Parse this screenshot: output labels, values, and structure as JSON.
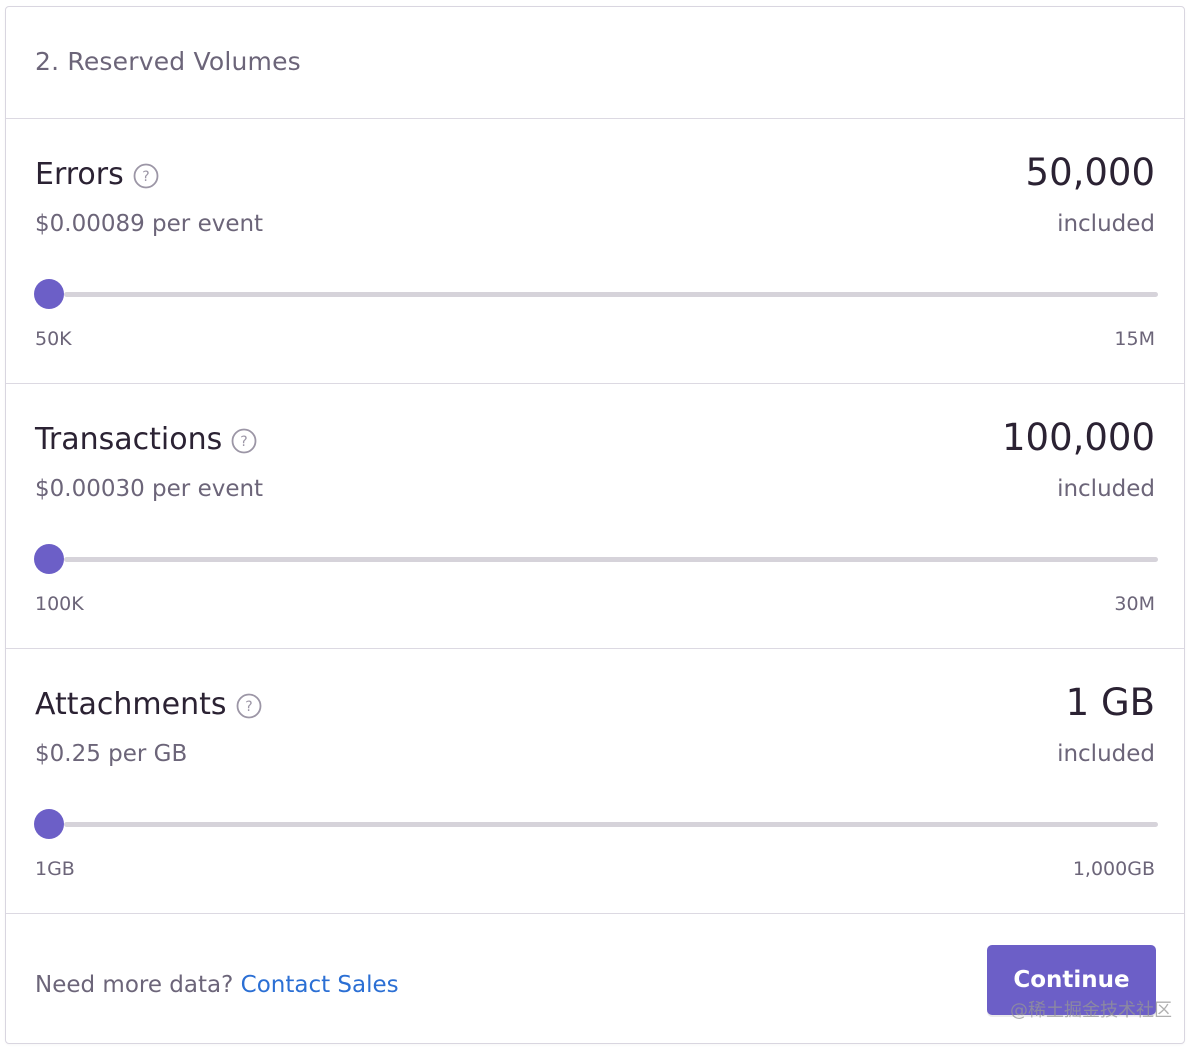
{
  "header": {
    "title": "2.  Reserved Volumes"
  },
  "sections": [
    {
      "title": "Errors",
      "help_icon": "question-circle-icon",
      "price": "$0.00089 per event",
      "amount": "50,000",
      "amount_suffix": "included",
      "slider": {
        "min_label": "50K",
        "max_label": "15M",
        "value_fraction": 0
      }
    },
    {
      "title": "Transactions",
      "help_icon": "question-circle-icon",
      "price": "$0.00030 per event",
      "amount": "100,000",
      "amount_suffix": "included",
      "slider": {
        "min_label": "100K",
        "max_label": "30M",
        "value_fraction": 0
      }
    },
    {
      "title": "Attachments",
      "help_icon": "question-circle-icon",
      "price": "$0.25 per GB",
      "amount": "1 GB",
      "amount_suffix": "included",
      "slider": {
        "min_label": "1GB",
        "max_label": "1,000GB",
        "value_fraction": 0
      }
    }
  ],
  "footer": {
    "prompt": "Need more data?",
    "contact_link": "Contact Sales",
    "continue_label": "Continue"
  },
  "watermark": "@稀土掘金技术社区",
  "colors": {
    "accent": "#6c5fc7",
    "link": "#2b6fd4",
    "heading": "#2b2233",
    "muted": "#6c6579",
    "track": "#d6d3da"
  }
}
